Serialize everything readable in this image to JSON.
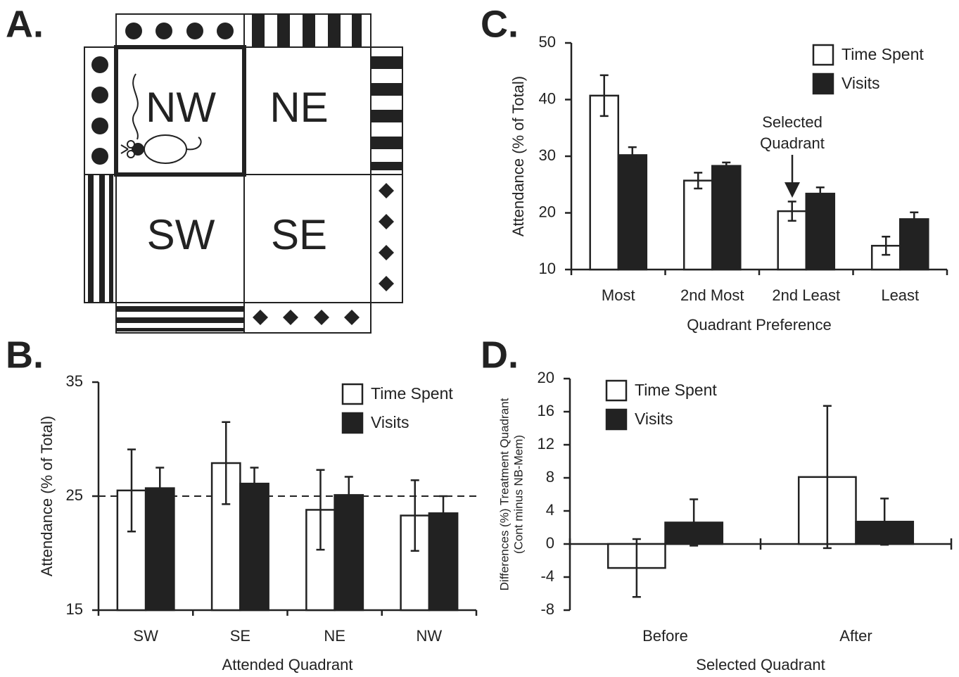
{
  "diagram": {
    "label": "A.",
    "quadrants": [
      "NW",
      "NE",
      "SW",
      "SE"
    ]
  },
  "chart_data": [
    {
      "type": "bar",
      "panel_label": "B.",
      "categories": [
        "SW",
        "SE",
        "NE",
        "NW"
      ],
      "series": [
        {
          "name": "Time Spent",
          "color": "#ffffff",
          "values": [
            25.5,
            27.9,
            23.8,
            23.3
          ],
          "errors": [
            3.6,
            3.6,
            3.5,
            3.1
          ]
        },
        {
          "name": "Visits",
          "color": "#222222",
          "values": [
            25.7,
            26.1,
            25.1,
            23.5
          ],
          "errors": [
            1.8,
            1.4,
            1.6,
            1.5
          ]
        }
      ],
      "ylim": [
        15,
        35
      ],
      "yticks": [
        15,
        25,
        35
      ],
      "reference_line": 25,
      "xlabel": "Attended Quadrant",
      "ylabel": [
        "Attendance (% of Total)"
      ],
      "legend": "upper right"
    },
    {
      "type": "bar",
      "panel_label": "C.",
      "categories": [
        "Most",
        "2nd Most",
        "2nd Least",
        "Least"
      ],
      "series": [
        {
          "name": "Time Spent",
          "color": "#ffffff",
          "values": [
            40.7,
            25.7,
            20.3,
            14.2
          ],
          "errors": [
            3.6,
            1.4,
            1.7,
            1.6
          ]
        },
        {
          "name": "Visits",
          "color": "#222222",
          "values": [
            30.2,
            28.3,
            23.4,
            18.9
          ],
          "errors": [
            1.4,
            0.6,
            1.1,
            1.2
          ]
        }
      ],
      "ylim": [
        10,
        50
      ],
      "yticks": [
        10,
        20,
        30,
        40,
        50
      ],
      "annotation": [
        "Selected",
        "Quadrant"
      ],
      "xlabel": "Quadrant Preference",
      "ylabel": [
        "Attendance (% of Total)"
      ],
      "legend": "upper right"
    },
    {
      "type": "bar",
      "panel_label": "D.",
      "categories": [
        "Before",
        "After"
      ],
      "series": [
        {
          "name": "Time Spent",
          "color": "#ffffff",
          "values": [
            -2.9,
            8.1
          ],
          "errors": [
            3.5,
            8.6
          ]
        },
        {
          "name": "Visits",
          "color": "#222222",
          "values": [
            2.6,
            2.7
          ],
          "errors": [
            2.8,
            2.8
          ]
        }
      ],
      "ylim": [
        -8,
        20
      ],
      "yticks": [
        -8,
        -4,
        0,
        4,
        8,
        12,
        16,
        20
      ],
      "xlabel": "Selected Quadrant",
      "ylabel": [
        "Differences (%) Treatment Quadrant",
        "(Cont minus NB-Mem)"
      ],
      "legend": "upper left"
    }
  ]
}
